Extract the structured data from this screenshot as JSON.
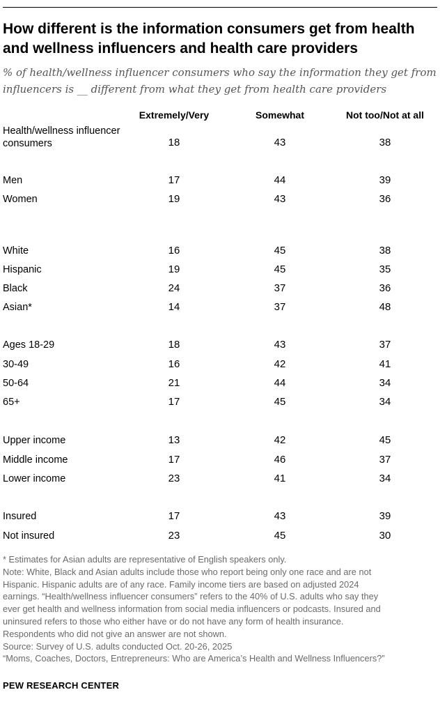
{
  "title": "How different is the information consumers get from health and wellness influencers and health care providers",
  "subtitle": "% of health/wellness influencer consumers who say the information they get from influencers is __ different from what they get from health care providers",
  "chart_data": {
    "type": "table",
    "columns": [
      "Extremely/Very",
      "Somewhat",
      "Not too/Not at all"
    ],
    "rows": [
      {
        "label": "Health/wellness influencer consumers",
        "values": [
          18,
          43,
          38
        ]
      },
      {
        "label": "Men",
        "values": [
          17,
          44,
          39
        ]
      },
      {
        "label": "Women",
        "values": [
          19,
          43,
          36
        ]
      },
      {
        "label": "White",
        "values": [
          16,
          45,
          38
        ]
      },
      {
        "label": "Hispanic",
        "values": [
          19,
          45,
          35
        ]
      },
      {
        "label": "Black",
        "values": [
          24,
          37,
          36
        ]
      },
      {
        "label": "Asian*",
        "values": [
          14,
          37,
          48
        ]
      },
      {
        "label": "Ages 18-29",
        "values": [
          18,
          43,
          37
        ]
      },
      {
        "label": "30-49",
        "values": [
          16,
          42,
          41
        ]
      },
      {
        "label": "50-64",
        "values": [
          21,
          44,
          34
        ]
      },
      {
        "label": "65+",
        "values": [
          17,
          45,
          34
        ]
      },
      {
        "label": "Upper income",
        "values": [
          13,
          42,
          45
        ]
      },
      {
        "label": "Middle income",
        "values": [
          17,
          46,
          37
        ]
      },
      {
        "label": "Lower income",
        "values": [
          23,
          41,
          34
        ]
      },
      {
        "label": "Insured",
        "values": [
          17,
          43,
          39
        ]
      },
      {
        "label": "Not insured",
        "values": [
          23,
          45,
          30
        ]
      }
    ]
  },
  "notes": [
    "* Estimates for Asian adults are representative of English speakers only.",
    "Note: White, Black and Asian adults include those who report being only one race and are not",
    "Hispanic. Hispanic adults are of any race. Family income tiers are based on adjusted 2024",
    "earnings. “Health/wellness influencer consumers” refers to the 40% of U.S. adults who say they",
    "ever get health and wellness information from social media influencers or podcasts. Insured and",
    "uninsured refers to those who either have or do not have any form of health insurance.",
    "Respondents who did not give an answer are not shown.",
    "Source: Survey of U.S. adults conducted Oct. 20-26, 2025",
    "“Moms, Coaches, Doctors, Entrepreneurs: Who are America’s Health and Wellness Influencers?”"
  ],
  "brand": "PEW RESEARCH CENTER"
}
